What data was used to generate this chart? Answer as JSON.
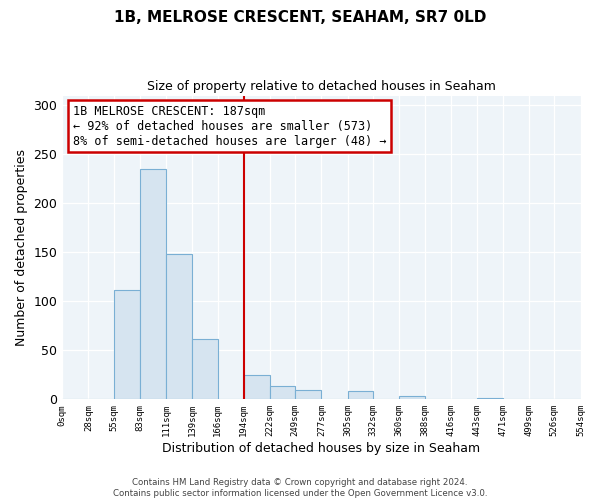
{
  "title": "1B, MELROSE CRESCENT, SEAHAM, SR7 0LD",
  "subtitle": "Size of property relative to detached houses in Seaham",
  "xlabel": "Distribution of detached houses by size in Seaham",
  "ylabel": "Number of detached properties",
  "bar_edges": [
    0,
    28,
    55,
    83,
    111,
    139,
    166,
    194,
    222,
    249,
    277,
    305,
    332,
    360,
    388,
    416,
    443,
    471,
    499,
    526,
    554
  ],
  "bar_heights": [
    0,
    0,
    112,
    235,
    148,
    62,
    0,
    25,
    14,
    10,
    0,
    8,
    0,
    3,
    0,
    0,
    1,
    0,
    0,
    0,
    1
  ],
  "bar_color": "#d6e4f0",
  "bar_edgecolor": "#7aafd4",
  "vline_x": 194,
  "vline_color": "#cc0000",
  "ylim": [
    0,
    310
  ],
  "yticks": [
    0,
    50,
    100,
    150,
    200,
    250,
    300
  ],
  "annotation_title": "1B MELROSE CRESCENT: 187sqm",
  "annotation_line1": "← 92% of detached houses are smaller (573)",
  "annotation_line2": "8% of semi-detached houses are larger (48) →",
  "footer_line1": "Contains HM Land Registry data © Crown copyright and database right 2024.",
  "footer_line2": "Contains public sector information licensed under the Open Government Licence v3.0.",
  "tick_labels": [
    "0sqm",
    "28sqm",
    "55sqm",
    "83sqm",
    "111sqm",
    "139sqm",
    "166sqm",
    "194sqm",
    "222sqm",
    "249sqm",
    "277sqm",
    "305sqm",
    "332sqm",
    "360sqm",
    "388sqm",
    "416sqm",
    "443sqm",
    "471sqm",
    "499sqm",
    "526sqm",
    "554sqm"
  ],
  "background_color": "#eef4f9"
}
